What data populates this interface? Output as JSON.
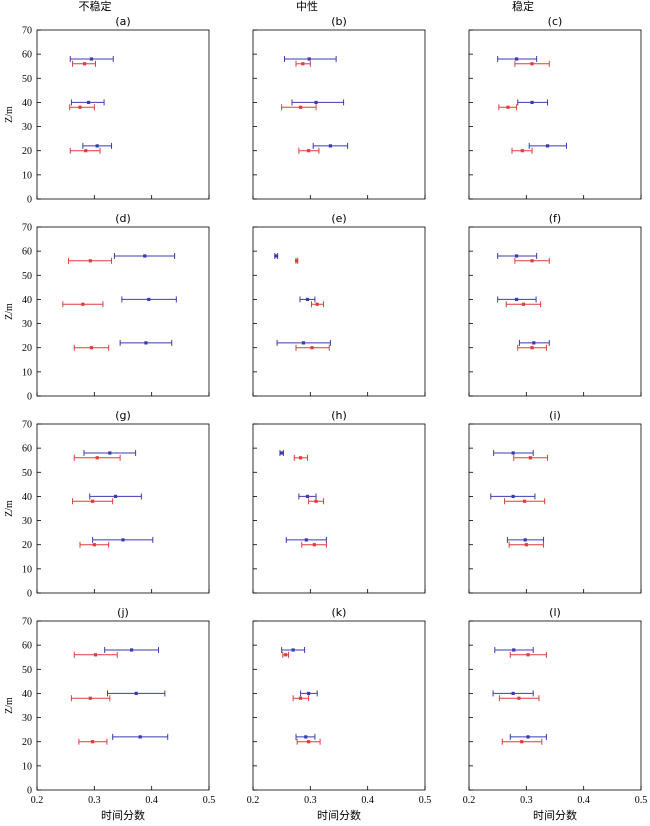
{
  "figure": {
    "column_titles": [
      "不稳定",
      "中性",
      "稳定"
    ],
    "ylabel": "Z/m",
    "xlabel": "时间分数",
    "xlim": [
      0.2,
      0.5
    ],
    "ylim": [
      0,
      70
    ],
    "xticks": [
      "0.2",
      "0.3",
      "0.4",
      "0.5"
    ],
    "yticks": [
      "0",
      "10",
      "20",
      "30",
      "40",
      "50",
      "60",
      "70"
    ],
    "colors": {
      "blue": "#3b3bb0",
      "red": "#e03c3c",
      "axis": "#000000"
    }
  },
  "chart_data": [
    {
      "label": "(a)",
      "type": "scatter",
      "series": [
        {
          "color": "blue",
          "points": [
            {
              "y": 58,
              "x": 0.295,
              "xmin": 0.258,
              "xmax": 0.333
            },
            {
              "y": 40,
              "x": 0.29,
              "xmin": 0.26,
              "xmax": 0.317
            },
            {
              "y": 22,
              "x": 0.305,
              "xmin": 0.28,
              "xmax": 0.33
            }
          ]
        },
        {
          "color": "red",
          "points": [
            {
              "y": 56,
              "x": 0.283,
              "xmin": 0.262,
              "xmax": 0.302
            },
            {
              "y": 38,
              "x": 0.275,
              "xmin": 0.257,
              "xmax": 0.3
            },
            {
              "y": 20,
              "x": 0.285,
              "xmin": 0.258,
              "xmax": 0.31
            }
          ]
        }
      ]
    },
    {
      "label": "(b)",
      "type": "scatter",
      "series": [
        {
          "color": "blue",
          "points": [
            {
              "y": 58,
              "x": 0.298,
              "xmin": 0.255,
              "xmax": 0.345
            },
            {
              "y": 40,
              "x": 0.31,
              "xmin": 0.268,
              "xmax": 0.358
            },
            {
              "y": 22,
              "x": 0.335,
              "xmin": 0.305,
              "xmax": 0.365
            }
          ]
        },
        {
          "color": "red",
          "points": [
            {
              "y": 56,
              "x": 0.287,
              "xmin": 0.275,
              "xmax": 0.3
            },
            {
              "y": 38,
              "x": 0.283,
              "xmin": 0.25,
              "xmax": 0.31
            },
            {
              "y": 20,
              "x": 0.297,
              "xmin": 0.28,
              "xmax": 0.315
            }
          ]
        }
      ]
    },
    {
      "label": "(c)",
      "type": "scatter",
      "series": [
        {
          "color": "blue",
          "points": [
            {
              "y": 58,
              "x": 0.283,
              "xmin": 0.25,
              "xmax": 0.318
            },
            {
              "y": 40,
              "x": 0.31,
              "xmin": 0.285,
              "xmax": 0.337
            },
            {
              "y": 22,
              "x": 0.337,
              "xmin": 0.305,
              "xmax": 0.37
            }
          ]
        },
        {
          "color": "red",
          "points": [
            {
              "y": 56,
              "x": 0.31,
              "xmin": 0.28,
              "xmax": 0.34
            },
            {
              "y": 38,
              "x": 0.268,
              "xmin": 0.252,
              "xmax": 0.283
            },
            {
              "y": 20,
              "x": 0.293,
              "xmin": 0.275,
              "xmax": 0.31
            }
          ]
        }
      ]
    },
    {
      "label": "(d)",
      "type": "scatter",
      "series": [
        {
          "color": "blue",
          "points": [
            {
              "y": 58,
              "x": 0.388,
              "xmin": 0.335,
              "xmax": 0.44
            },
            {
              "y": 40,
              "x": 0.395,
              "xmin": 0.348,
              "xmax": 0.443
            },
            {
              "y": 22,
              "x": 0.39,
              "xmin": 0.345,
              "xmax": 0.435
            }
          ]
        },
        {
          "color": "red",
          "points": [
            {
              "y": 56,
              "x": 0.293,
              "xmin": 0.255,
              "xmax": 0.33
            },
            {
              "y": 38,
              "x": 0.28,
              "xmin": 0.245,
              "xmax": 0.315
            },
            {
              "y": 20,
              "x": 0.295,
              "xmin": 0.265,
              "xmax": 0.325
            }
          ]
        }
      ]
    },
    {
      "label": "(e)",
      "type": "scatter",
      "series": [
        {
          "color": "blue",
          "points": [
            {
              "y": 58,
              "x": 0.24,
              "xmin": 0.238,
              "xmax": 0.243
            },
            {
              "y": 40,
              "x": 0.295,
              "xmin": 0.282,
              "xmax": 0.308
            },
            {
              "y": 22,
              "x": 0.288,
              "xmin": 0.242,
              "xmax": 0.335
            }
          ]
        },
        {
          "color": "red",
          "points": [
            {
              "y": 56,
              "x": 0.276,
              "xmin": 0.275,
              "xmax": 0.278
            },
            {
              "y": 38,
              "x": 0.312,
              "xmin": 0.302,
              "xmax": 0.323
            },
            {
              "y": 20,
              "x": 0.303,
              "xmin": 0.275,
              "xmax": 0.333
            }
          ]
        }
      ]
    },
    {
      "label": "(f)",
      "type": "scatter",
      "series": [
        {
          "color": "blue",
          "points": [
            {
              "y": 58,
              "x": 0.283,
              "xmin": 0.25,
              "xmax": 0.318
            },
            {
              "y": 40,
              "x": 0.283,
              "xmin": 0.25,
              "xmax": 0.317
            },
            {
              "y": 22,
              "x": 0.313,
              "xmin": 0.288,
              "xmax": 0.34
            }
          ]
        },
        {
          "color": "red",
          "points": [
            {
              "y": 56,
              "x": 0.31,
              "xmin": 0.28,
              "xmax": 0.34
            },
            {
              "y": 38,
              "x": 0.295,
              "xmin": 0.265,
              "xmax": 0.325
            },
            {
              "y": 20,
              "x": 0.31,
              "xmin": 0.285,
              "xmax": 0.335
            }
          ]
        }
      ]
    },
    {
      "label": "(g)",
      "type": "scatter",
      "series": [
        {
          "color": "blue",
          "points": [
            {
              "y": 58,
              "x": 0.327,
              "xmin": 0.282,
              "xmax": 0.372
            },
            {
              "y": 40,
              "x": 0.337,
              "xmin": 0.292,
              "xmax": 0.382
            },
            {
              "y": 22,
              "x": 0.35,
              "xmin": 0.297,
              "xmax": 0.402
            }
          ]
        },
        {
          "color": "red",
          "points": [
            {
              "y": 56,
              "x": 0.305,
              "xmin": 0.265,
              "xmax": 0.345
            },
            {
              "y": 38,
              "x": 0.297,
              "xmin": 0.262,
              "xmax": 0.332
            },
            {
              "y": 20,
              "x": 0.3,
              "xmin": 0.275,
              "xmax": 0.325
            }
          ]
        }
      ]
    },
    {
      "label": "(h)",
      "type": "scatter",
      "series": [
        {
          "color": "blue",
          "points": [
            {
              "y": 58,
              "x": 0.25,
              "xmin": 0.247,
              "xmax": 0.253
            },
            {
              "y": 40,
              "x": 0.295,
              "xmin": 0.28,
              "xmax": 0.31
            },
            {
              "y": 22,
              "x": 0.293,
              "xmin": 0.258,
              "xmax": 0.328
            }
          ]
        },
        {
          "color": "red",
          "points": [
            {
              "y": 56,
              "x": 0.283,
              "xmin": 0.272,
              "xmax": 0.295
            },
            {
              "y": 38,
              "x": 0.31,
              "xmin": 0.297,
              "xmax": 0.323
            },
            {
              "y": 20,
              "x": 0.307,
              "xmin": 0.285,
              "xmax": 0.328
            }
          ]
        }
      ]
    },
    {
      "label": "(i)",
      "type": "scatter",
      "series": [
        {
          "color": "blue",
          "points": [
            {
              "y": 58,
              "x": 0.277,
              "xmin": 0.243,
              "xmax": 0.312
            },
            {
              "y": 40,
              "x": 0.277,
              "xmin": 0.238,
              "xmax": 0.315
            },
            {
              "y": 22,
              "x": 0.298,
              "xmin": 0.267,
              "xmax": 0.33
            }
          ]
        },
        {
          "color": "red",
          "points": [
            {
              "y": 56,
              "x": 0.307,
              "xmin": 0.278,
              "xmax": 0.337
            },
            {
              "y": 38,
              "x": 0.297,
              "xmin": 0.262,
              "xmax": 0.332
            },
            {
              "y": 20,
              "x": 0.3,
              "xmin": 0.27,
              "xmax": 0.33
            }
          ]
        }
      ]
    },
    {
      "label": "(j)",
      "type": "scatter",
      "series": [
        {
          "color": "blue",
          "points": [
            {
              "y": 58,
              "x": 0.365,
              "xmin": 0.318,
              "xmax": 0.412
            },
            {
              "y": 40,
              "x": 0.373,
              "xmin": 0.323,
              "xmax": 0.423
            },
            {
              "y": 22,
              "x": 0.38,
              "xmin": 0.332,
              "xmax": 0.428
            }
          ]
        },
        {
          "color": "red",
          "points": [
            {
              "y": 56,
              "x": 0.302,
              "xmin": 0.265,
              "xmax": 0.34
            },
            {
              "y": 38,
              "x": 0.293,
              "xmin": 0.26,
              "xmax": 0.327
            },
            {
              "y": 20,
              "x": 0.297,
              "xmin": 0.273,
              "xmax": 0.322
            }
          ]
        }
      ]
    },
    {
      "label": "(k)",
      "type": "scatter",
      "series": [
        {
          "color": "blue",
          "points": [
            {
              "y": 58,
              "x": 0.27,
              "xmin": 0.25,
              "xmax": 0.29
            },
            {
              "y": 40,
              "x": 0.297,
              "xmin": 0.283,
              "xmax": 0.312
            },
            {
              "y": 22,
              "x": 0.292,
              "xmin": 0.275,
              "xmax": 0.308
            }
          ]
        },
        {
          "color": "red",
          "points": [
            {
              "y": 56,
              "x": 0.257,
              "xmin": 0.252,
              "xmax": 0.262
            },
            {
              "y": 38,
              "x": 0.283,
              "xmin": 0.27,
              "xmax": 0.297
            },
            {
              "y": 20,
              "x": 0.297,
              "xmin": 0.277,
              "xmax": 0.317
            }
          ]
        }
      ]
    },
    {
      "label": "(l)",
      "type": "scatter",
      "series": [
        {
          "color": "blue",
          "points": [
            {
              "y": 58,
              "x": 0.278,
              "xmin": 0.245,
              "xmax": 0.312
            },
            {
              "y": 40,
              "x": 0.277,
              "xmin": 0.242,
              "xmax": 0.312
            },
            {
              "y": 22,
              "x": 0.303,
              "xmin": 0.272,
              "xmax": 0.335
            }
          ]
        },
        {
          "color": "red",
          "points": [
            {
              "y": 56,
              "x": 0.303,
              "xmin": 0.272,
              "xmax": 0.335
            },
            {
              "y": 38,
              "x": 0.287,
              "xmin": 0.253,
              "xmax": 0.322
            },
            {
              "y": 20,
              "x": 0.292,
              "xmin": 0.258,
              "xmax": 0.327
            }
          ]
        }
      ]
    }
  ]
}
